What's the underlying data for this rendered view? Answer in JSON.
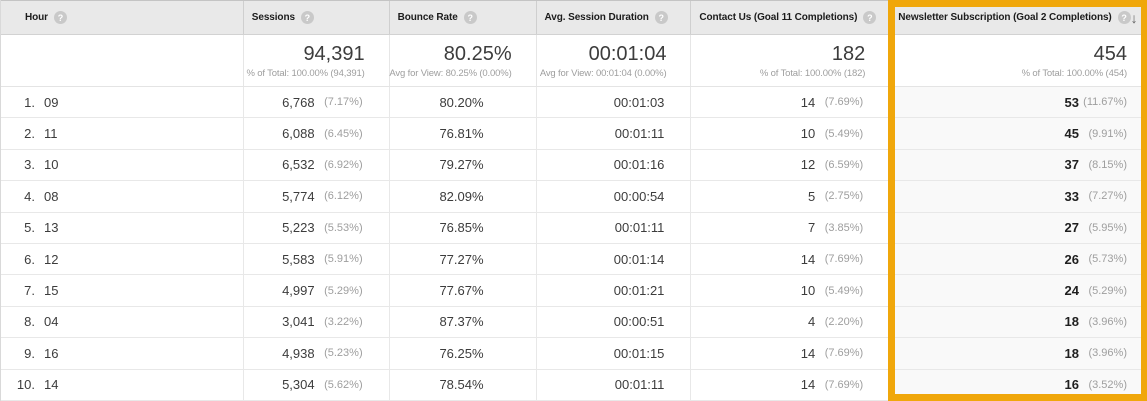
{
  "accent": {
    "highlight_border": "#F0A70B"
  },
  "icons": {
    "help": "?",
    "sort_desc": "↓"
  },
  "columns": [
    {
      "label": "Hour"
    },
    {
      "label": "Sessions"
    },
    {
      "label": "Bounce Rate"
    },
    {
      "label": "Avg. Session Duration"
    },
    {
      "label": "Contact Us (Goal 11 Completions)"
    },
    {
      "label": "Newsletter Subscription (Goal 2 Completions)"
    }
  ],
  "summary": {
    "sessions": {
      "value": "94,391",
      "note": "% of Total: 100.00% (94,391)"
    },
    "bounce_rate": {
      "value": "80.25%",
      "note": "Avg for View: 80.25% (0.00%)"
    },
    "avg_session_duration": {
      "value": "00:01:04",
      "note": "Avg for View: 00:01:04 (0.00%)"
    },
    "contact_us": {
      "value": "182",
      "note": "% of Total: 100.00% (182)"
    },
    "newsletter": {
      "value": "454",
      "note": "% of Total: 100.00% (454)"
    }
  },
  "rows": [
    {
      "rank": "1.",
      "hour": "09",
      "sessions": "6,768",
      "sessions_pct": "(7.17%)",
      "bounce_rate": "80.20%",
      "avg_duration": "00:01:03",
      "contact_us": "14",
      "contact_us_pct": "(7.69%)",
      "newsletter": "53",
      "newsletter_pct": "(11.67%)"
    },
    {
      "rank": "2.",
      "hour": "11",
      "sessions": "6,088",
      "sessions_pct": "(6.45%)",
      "bounce_rate": "76.81%",
      "avg_duration": "00:01:11",
      "contact_us": "10",
      "contact_us_pct": "(5.49%)",
      "newsletter": "45",
      "newsletter_pct": "(9.91%)"
    },
    {
      "rank": "3.",
      "hour": "10",
      "sessions": "6,532",
      "sessions_pct": "(6.92%)",
      "bounce_rate": "79.27%",
      "avg_duration": "00:01:16",
      "contact_us": "12",
      "contact_us_pct": "(6.59%)",
      "newsletter": "37",
      "newsletter_pct": "(8.15%)"
    },
    {
      "rank": "4.",
      "hour": "08",
      "sessions": "5,774",
      "sessions_pct": "(6.12%)",
      "bounce_rate": "82.09%",
      "avg_duration": "00:00:54",
      "contact_us": "5",
      "contact_us_pct": "(2.75%)",
      "newsletter": "33",
      "newsletter_pct": "(7.27%)"
    },
    {
      "rank": "5.",
      "hour": "13",
      "sessions": "5,223",
      "sessions_pct": "(5.53%)",
      "bounce_rate": "76.85%",
      "avg_duration": "00:01:11",
      "contact_us": "7",
      "contact_us_pct": "(3.85%)",
      "newsletter": "27",
      "newsletter_pct": "(5.95%)"
    },
    {
      "rank": "6.",
      "hour": "12",
      "sessions": "5,583",
      "sessions_pct": "(5.91%)",
      "bounce_rate": "77.27%",
      "avg_duration": "00:01:14",
      "contact_us": "14",
      "contact_us_pct": "(7.69%)",
      "newsletter": "26",
      "newsletter_pct": "(5.73%)"
    },
    {
      "rank": "7.",
      "hour": "15",
      "sessions": "4,997",
      "sessions_pct": "(5.29%)",
      "bounce_rate": "77.67%",
      "avg_duration": "00:01:21",
      "contact_us": "10",
      "contact_us_pct": "(5.49%)",
      "newsletter": "24",
      "newsletter_pct": "(5.29%)"
    },
    {
      "rank": "8.",
      "hour": "04",
      "sessions": "3,041",
      "sessions_pct": "(3.22%)",
      "bounce_rate": "87.37%",
      "avg_duration": "00:00:51",
      "contact_us": "4",
      "contact_us_pct": "(2.20%)",
      "newsletter": "18",
      "newsletter_pct": "(3.96%)"
    },
    {
      "rank": "9.",
      "hour": "16",
      "sessions": "4,938",
      "sessions_pct": "(5.23%)",
      "bounce_rate": "76.25%",
      "avg_duration": "00:01:15",
      "contact_us": "14",
      "contact_us_pct": "(7.69%)",
      "newsletter": "18",
      "newsletter_pct": "(3.96%)"
    },
    {
      "rank": "10.",
      "hour": "14",
      "sessions": "5,304",
      "sessions_pct": "(5.62%)",
      "bounce_rate": "78.54%",
      "avg_duration": "00:01:11",
      "contact_us": "14",
      "contact_us_pct": "(7.69%)",
      "newsletter": "16",
      "newsletter_pct": "(3.52%)"
    }
  ]
}
